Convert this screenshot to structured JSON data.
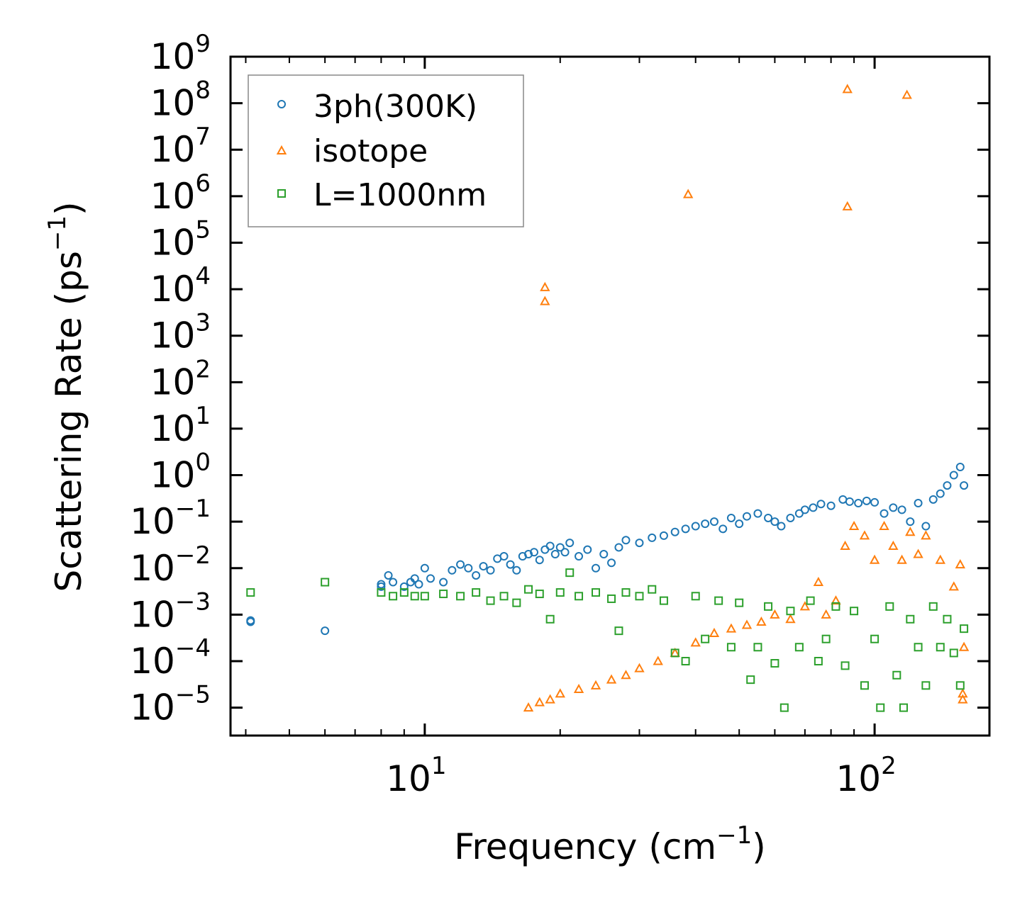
{
  "chart_data": {
    "type": "scatter",
    "title": "",
    "xlabel": "Frequency (cm",
    "xlabel_sup": "−1",
    "xlabel_end": ")",
    "ylabel": "Scattering Rate (ps",
    "ylabel_sup": "−1",
    "ylabel_end": ")",
    "xscale": "log",
    "yscale": "log",
    "xlim": [
      3.7,
      180
    ],
    "ylim_log10": [
      -5.6,
      9
    ],
    "x_tick_labels": [
      {
        "value": 10,
        "base": "10",
        "exp": "1"
      },
      {
        "value": 100,
        "base": "10",
        "exp": "2"
      }
    ],
    "y_tick_labels": [
      {
        "exp_value": 9,
        "base": "10",
        "exp": "9"
      },
      {
        "exp_value": 8,
        "base": "10",
        "exp": "8"
      },
      {
        "exp_value": 7,
        "base": "10",
        "exp": "7"
      },
      {
        "exp_value": 6,
        "base": "10",
        "exp": "6"
      },
      {
        "exp_value": 5,
        "base": "10",
        "exp": "5"
      },
      {
        "exp_value": 4,
        "base": "10",
        "exp": "4"
      },
      {
        "exp_value": 3,
        "base": "10",
        "exp": "3"
      },
      {
        "exp_value": 2,
        "base": "10",
        "exp": "2"
      },
      {
        "exp_value": 1,
        "base": "10",
        "exp": "1"
      },
      {
        "exp_value": 0,
        "base": "10",
        "exp": "0"
      },
      {
        "exp_value": -1,
        "base": "10",
        "exp": "−1"
      },
      {
        "exp_value": -2,
        "base": "10",
        "exp": "−2"
      },
      {
        "exp_value": -3,
        "base": "10",
        "exp": "−3"
      },
      {
        "exp_value": -4,
        "base": "10",
        "exp": "−4"
      },
      {
        "exp_value": -5,
        "base": "10",
        "exp": "−5"
      }
    ],
    "legend_position": "top-left",
    "series": [
      {
        "name": "3ph(300K)",
        "marker": "circle",
        "color": "#1f77b4",
        "points": [
          [
            4.1,
            0.0007
          ],
          [
            4.1,
            0.00075
          ],
          [
            6.0,
            0.00045
          ],
          [
            8.0,
            0.004
          ],
          [
            8.0,
            0.0045
          ],
          [
            8.3,
            0.007
          ],
          [
            8.5,
            0.005
          ],
          [
            9.0,
            0.004
          ],
          [
            9.3,
            0.005
          ],
          [
            9.5,
            0.006
          ],
          [
            9.7,
            0.0045
          ],
          [
            10.0,
            0.01
          ],
          [
            10.3,
            0.006
          ],
          [
            11.0,
            0.005
          ],
          [
            11.5,
            0.009
          ],
          [
            12.0,
            0.012
          ],
          [
            12.5,
            0.01
          ],
          [
            13.0,
            0.007
          ],
          [
            13.5,
            0.011
          ],
          [
            14.0,
            0.009
          ],
          [
            14.5,
            0.016
          ],
          [
            15.0,
            0.018
          ],
          [
            15.5,
            0.012
          ],
          [
            16.0,
            0.009
          ],
          [
            16.5,
            0.018
          ],
          [
            17.0,
            0.02
          ],
          [
            17.5,
            0.022
          ],
          [
            18.0,
            0.015
          ],
          [
            18.5,
            0.025
          ],
          [
            19.0,
            0.03
          ],
          [
            19.5,
            0.02
          ],
          [
            20.0,
            0.028
          ],
          [
            20.5,
            0.022
          ],
          [
            21.0,
            0.035
          ],
          [
            22.0,
            0.018
          ],
          [
            23.0,
            0.025
          ],
          [
            24.0,
            0.01
          ],
          [
            25.0,
            0.02
          ],
          [
            26.0,
            0.013
          ],
          [
            27.0,
            0.028
          ],
          [
            28.0,
            0.04
          ],
          [
            30.0,
            0.035
          ],
          [
            32.0,
            0.045
          ],
          [
            34.0,
            0.05
          ],
          [
            36.0,
            0.06
          ],
          [
            38.0,
            0.07
          ],
          [
            40.0,
            0.08
          ],
          [
            42.0,
            0.09
          ],
          [
            44.0,
            0.1
          ],
          [
            46.0,
            0.07
          ],
          [
            48.0,
            0.12
          ],
          [
            50.0,
            0.09
          ],
          [
            52.0,
            0.13
          ],
          [
            55.0,
            0.15
          ],
          [
            58.0,
            0.12
          ],
          [
            60.0,
            0.1
          ],
          [
            62.0,
            0.08
          ],
          [
            65.0,
            0.12
          ],
          [
            68.0,
            0.15
          ],
          [
            70.0,
            0.18
          ],
          [
            73.0,
            0.2
          ],
          [
            76.0,
            0.24
          ],
          [
            80.0,
            0.22
          ],
          [
            85.0,
            0.3
          ],
          [
            88.0,
            0.27
          ],
          [
            92.0,
            0.25
          ],
          [
            96.0,
            0.28
          ],
          [
            100.0,
            0.26
          ],
          [
            105.0,
            0.15
          ],
          [
            110.0,
            0.2
          ],
          [
            115.0,
            0.18
          ],
          [
            120.0,
            0.1
          ],
          [
            125.0,
            0.25
          ],
          [
            130.0,
            0.08
          ],
          [
            135.0,
            0.3
          ],
          [
            140.0,
            0.4
          ],
          [
            145.0,
            0.6
          ],
          [
            150.0,
            1.0
          ],
          [
            155.0,
            1.5
          ],
          [
            158.0,
            0.6
          ]
        ]
      },
      {
        "name": "isotope",
        "marker": "triangle",
        "color": "#ff7f0e",
        "points": [
          [
            18.5,
            11000
          ],
          [
            18.5,
            5500
          ],
          [
            38.5,
            1100000
          ],
          [
            87.0,
            200000000
          ],
          [
            87.0,
            600000
          ],
          [
            118.0,
            150000000
          ],
          [
            17.0,
            1e-05
          ],
          [
            18.0,
            1.3e-05
          ],
          [
            19.0,
            1.5e-05
          ],
          [
            20.0,
            2e-05
          ],
          [
            22.0,
            2.5e-05
          ],
          [
            24.0,
            3e-05
          ],
          [
            26.0,
            4e-05
          ],
          [
            28.0,
            5e-05
          ],
          [
            30.0,
            7e-05
          ],
          [
            33.0,
            0.0001
          ],
          [
            36.0,
            0.00015
          ],
          [
            40.0,
            0.00025
          ],
          [
            44.0,
            0.0004
          ],
          [
            48.0,
            0.0005
          ],
          [
            52.0,
            0.0006
          ],
          [
            56.0,
            0.0007
          ],
          [
            60.0,
            0.001
          ],
          [
            65.0,
            0.0008
          ],
          [
            70.0,
            0.0015
          ],
          [
            75.0,
            0.005
          ],
          [
            78.0,
            0.001
          ],
          [
            82.0,
            0.002
          ],
          [
            86.0,
            0.03
          ],
          [
            90.0,
            0.08
          ],
          [
            95.0,
            0.05
          ],
          [
            100.0,
            0.015
          ],
          [
            105.0,
            0.08
          ],
          [
            110.0,
            0.03
          ],
          [
            115.0,
            0.015
          ],
          [
            120.0,
            0.06
          ],
          [
            125.0,
            0.02
          ],
          [
            130.0,
            0.05
          ],
          [
            140.0,
            0.015
          ],
          [
            150.0,
            0.004
          ],
          [
            155.0,
            0.012
          ],
          [
            157.0,
            2e-05
          ],
          [
            157.0,
            1.5e-05
          ],
          [
            158.0,
            0.0002
          ]
        ]
      },
      {
        "name": "L=1000nm",
        "marker": "square",
        "color": "#2ca02c",
        "points": [
          [
            4.1,
            0.003
          ],
          [
            6.0,
            0.005
          ],
          [
            8.0,
            0.003
          ],
          [
            8.5,
            0.0025
          ],
          [
            9.0,
            0.003
          ],
          [
            9.5,
            0.0025
          ],
          [
            10.0,
            0.0025
          ],
          [
            11.0,
            0.0028
          ],
          [
            12.0,
            0.0025
          ],
          [
            13.0,
            0.003
          ],
          [
            14.0,
            0.002
          ],
          [
            15.0,
            0.0025
          ],
          [
            16.0,
            0.0018
          ],
          [
            17.0,
            0.0035
          ],
          [
            18.0,
            0.0028
          ],
          [
            19.0,
            0.0008
          ],
          [
            20.0,
            0.003
          ],
          [
            21.0,
            0.008
          ],
          [
            22.0,
            0.0025
          ],
          [
            24.0,
            0.003
          ],
          [
            26.0,
            0.0022
          ],
          [
            27.0,
            0.00045
          ],
          [
            28.0,
            0.003
          ],
          [
            30.0,
            0.0025
          ],
          [
            32.0,
            0.0035
          ],
          [
            34.0,
            0.002
          ],
          [
            36.0,
            0.00015
          ],
          [
            38.0,
            0.0001
          ],
          [
            40.0,
            0.0025
          ],
          [
            42.0,
            0.0003
          ],
          [
            45.0,
            0.002
          ],
          [
            48.0,
            0.0002
          ],
          [
            50.0,
            0.0018
          ],
          [
            53.0,
            4e-05
          ],
          [
            55.0,
            0.0002
          ],
          [
            58.0,
            0.0015
          ],
          [
            60.0,
            9e-05
          ],
          [
            63.0,
            1e-05
          ],
          [
            65.0,
            0.0012
          ],
          [
            68.0,
            0.0002
          ],
          [
            72.0,
            0.002
          ],
          [
            75.0,
            0.0001
          ],
          [
            78.0,
            0.0003
          ],
          [
            82.0,
            0.0015
          ],
          [
            86.0,
            8e-05
          ],
          [
            90.0,
            0.0012
          ],
          [
            95.0,
            3e-05
          ],
          [
            100.0,
            0.0003
          ],
          [
            103.0,
            1e-05
          ],
          [
            108.0,
            0.0015
          ],
          [
            112.0,
            5e-05
          ],
          [
            116.0,
            1e-05
          ],
          [
            120.0,
            0.0008
          ],
          [
            125.0,
            0.0002
          ],
          [
            130.0,
            3e-05
          ],
          [
            135.0,
            0.0015
          ],
          [
            140.0,
            0.0002
          ],
          [
            145.0,
            0.0008
          ],
          [
            150.0,
            0.00015
          ],
          [
            155.0,
            3e-05
          ],
          [
            158.0,
            0.0005
          ]
        ]
      }
    ]
  }
}
